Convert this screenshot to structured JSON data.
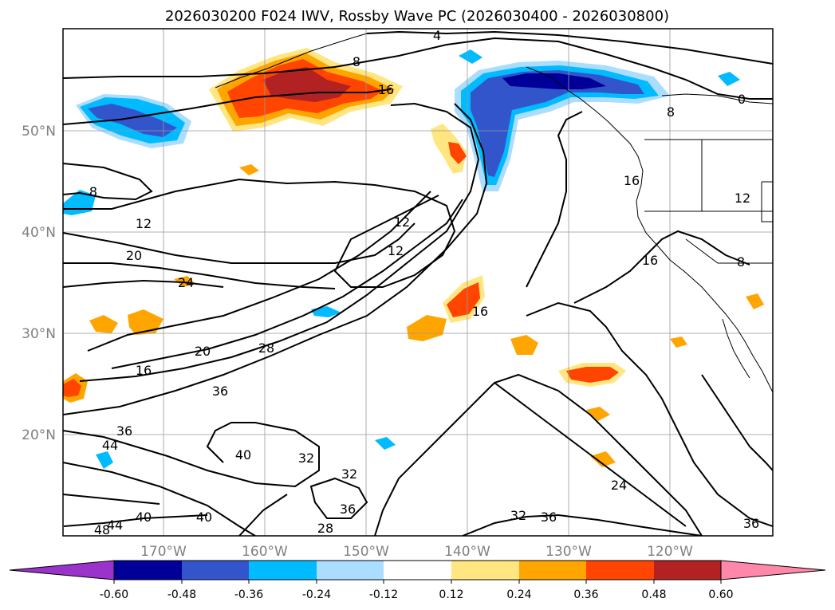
{
  "title": "2026030200 F024 IWV, Rossby Wave PC (2026030400 - 2026030800)",
  "lat_labels": [
    "50°N",
    "40°N",
    "30°N",
    "20°N"
  ],
  "lon_labels": [
    "170°W",
    "160°W",
    "150°W",
    "140°W",
    "130°W",
    "120°W"
  ],
  "colorbar": {
    "colors": [
      "#9933cc",
      "#000099",
      "#3355cc",
      "#00bbff",
      "#aaddff",
      "#ffffff",
      "#ffe680",
      "#ffa500",
      "#ff4500",
      "#b22222",
      "#ff88aa"
    ],
    "tick_labels": [
      "-0.60",
      "-0.48",
      "-0.36",
      "-0.24",
      "-0.12",
      "0.12",
      "0.24",
      "0.36",
      "0.48",
      "0.60"
    ]
  },
  "contour_labels": [
    {
      "id": "c4",
      "text": "4"
    },
    {
      "id": "c8a",
      "text": "8"
    },
    {
      "id": "c16a",
      "text": "16"
    },
    {
      "id": "c8b",
      "text": "8"
    },
    {
      "id": "c8c",
      "text": "8"
    },
    {
      "id": "c12a",
      "text": "12"
    },
    {
      "id": "c20a",
      "text": "20"
    },
    {
      "id": "c24a",
      "text": "24"
    },
    {
      "id": "c12b",
      "text": "12"
    },
    {
      "id": "c12c",
      "text": "12"
    },
    {
      "id": "c16b",
      "text": "16"
    },
    {
      "id": "c12d",
      "text": "12"
    },
    {
      "id": "c16c",
      "text": "16"
    },
    {
      "id": "c8d",
      "text": "8"
    },
    {
      "id": "c16d",
      "text": "16"
    },
    {
      "id": "c20b",
      "text": "20"
    },
    {
      "id": "c28a",
      "text": "28"
    },
    {
      "id": "c16e",
      "text": "16"
    },
    {
      "id": "c36a",
      "text": "36"
    },
    {
      "id": "c36b",
      "text": "36"
    },
    {
      "id": "c44a",
      "text": "44"
    },
    {
      "id": "c40a",
      "text": "40"
    },
    {
      "id": "c32a",
      "text": "32"
    },
    {
      "id": "c32b",
      "text": "32"
    },
    {
      "id": "c36c",
      "text": "36"
    },
    {
      "id": "c24b",
      "text": "24"
    },
    {
      "id": "c32c",
      "text": "32"
    },
    {
      "id": "c36d",
      "text": "36"
    },
    {
      "id": "c40b",
      "text": "40"
    },
    {
      "id": "c40c",
      "text": "40"
    },
    {
      "id": "c44b",
      "text": "44"
    },
    {
      "id": "c48a",
      "text": "48"
    },
    {
      "id": "c28b",
      "text": "28"
    },
    {
      "id": "c36e",
      "text": "36"
    },
    {
      "id": "c0a",
      "text": "0"
    }
  ]
}
